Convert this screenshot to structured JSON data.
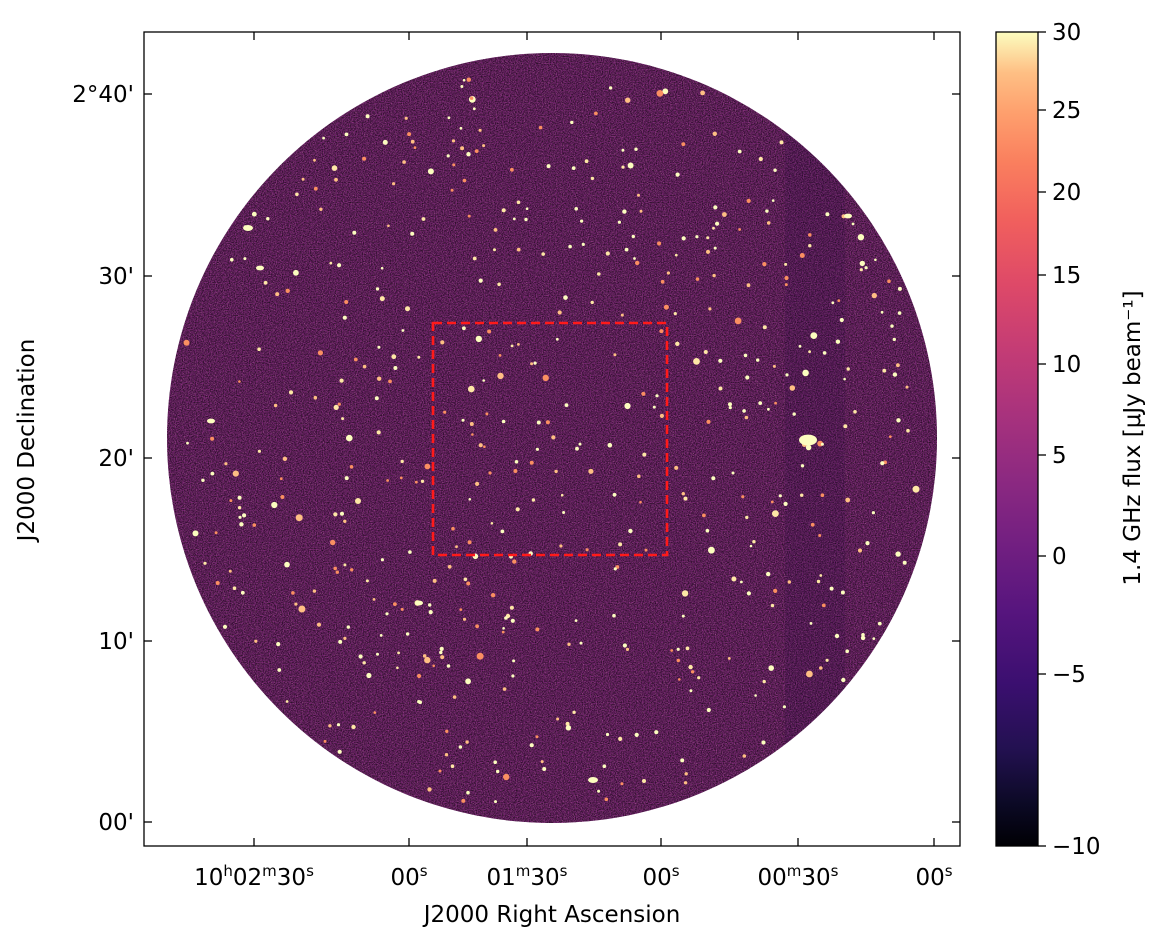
{
  "chart_data": {
    "type": "heatmap",
    "title": "",
    "xlabel": "J2000 Right Ascension",
    "ylabel": "J2000 Declination",
    "colorbar_label": "1.4 GHz flux [μJy beam⁻¹]",
    "colormap": "magma",
    "color_range": [
      -10,
      30
    ],
    "color_scale": "nonlinear (compressed below 0)",
    "x_ticks": [
      {
        "base": "10",
        "parts": [
          [
            "h",
            "02"
          ],
          [
            "m",
            "30"
          ],
          [
            "s",
            ""
          ]
        ]
      },
      {
        "base": "00",
        "parts": [
          [
            "s",
            ""
          ]
        ]
      },
      {
        "base": "01",
        "parts": [
          [
            "m",
            "30"
          ],
          [
            "s",
            ""
          ]
        ]
      },
      {
        "base": "00",
        "parts": [
          [
            "s",
            ""
          ]
        ]
      },
      {
        "base": "00",
        "parts": [
          [
            "m",
            "30"
          ],
          [
            "s",
            ""
          ]
        ]
      },
      {
        "base": "00",
        "parts": [
          [
            "s",
            ""
          ]
        ]
      }
    ],
    "y_ticks": [
      "00'",
      "10'",
      "20'",
      "30'",
      "2°40'"
    ],
    "colorbar_ticks": [
      30,
      25,
      20,
      15,
      10,
      5,
      0,
      -5,
      -10
    ],
    "colorbar_tick_labels": [
      "30",
      "25",
      "20",
      "15",
      "10",
      "5",
      "0",
      "−5",
      "−10"
    ],
    "field_shape": "circle",
    "annotations": [
      {
        "type": "box",
        "style": "dashed",
        "color": "#ff1a1a",
        "ra_range": [
          "01m40s",
          "00s"
        ],
        "dec_range": [
          "14.5'",
          "27.5'"
        ]
      }
    ],
    "grid": false
  },
  "colors": {
    "background_field": "#802a7a",
    "box": "#ff1a1a"
  }
}
